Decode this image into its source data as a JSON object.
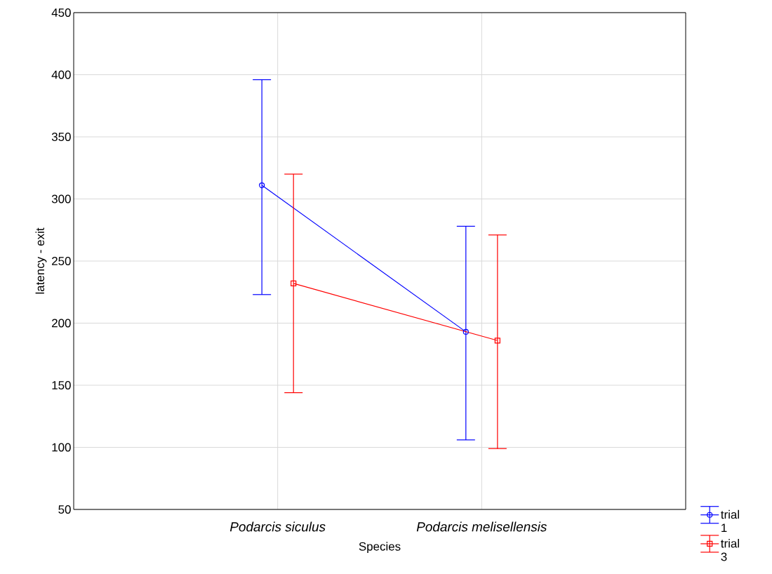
{
  "chart_data": {
    "type": "line",
    "xlabel": "Species",
    "ylabel": "latency - exit",
    "categories": [
      "Podarcis siculus",
      "Podarcis melisellensis"
    ],
    "series": [
      {
        "name": "trial 1",
        "color": "#0000ff",
        "marker": "circle",
        "values": [
          311,
          193
        ],
        "errors": [
          [
            223,
            396
          ],
          [
            106,
            278
          ]
        ]
      },
      {
        "name": "trial 3",
        "color": "#ff0000",
        "marker": "square",
        "values": [
          232,
          186
        ],
        "errors": [
          [
            144,
            320
          ],
          [
            99,
            271
          ]
        ]
      }
    ],
    "ylim": [
      50,
      450
    ],
    "yticks": [
      50,
      100,
      150,
      200,
      250,
      300,
      350,
      400,
      450
    ],
    "grid": true,
    "legend": "bottom right",
    "line_style": "solid"
  }
}
